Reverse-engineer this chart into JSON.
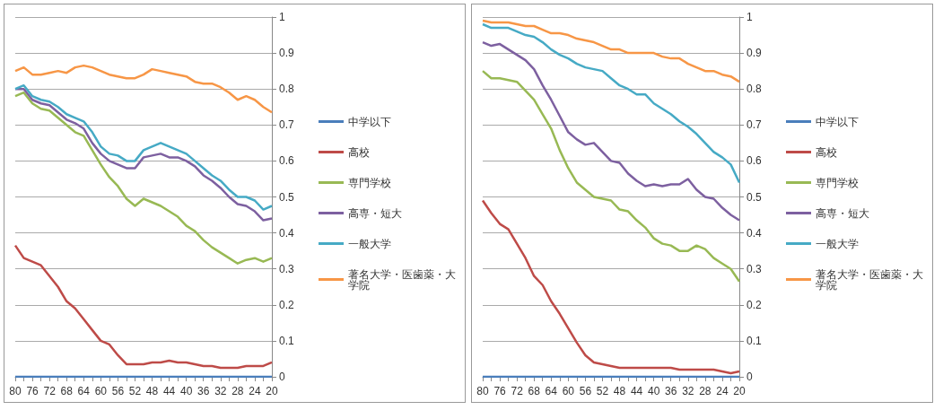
{
  "chart_data": [
    {
      "type": "line",
      "categories": [
        "80",
        null,
        "76",
        null,
        "72",
        null,
        "68",
        null,
        "64",
        null,
        "60",
        null,
        "56",
        null,
        "52",
        null,
        "48",
        null,
        "44",
        null,
        "40",
        null,
        "36",
        null,
        "32",
        null,
        "28",
        null,
        "24",
        null,
        "20"
      ],
      "ylim": [
        0,
        1
      ],
      "yticks": [
        0,
        0.1,
        0.2,
        0.3,
        0.4,
        0.5,
        0.6,
        0.7,
        0.8,
        0.9,
        1
      ],
      "grid": "y",
      "legend": "right",
      "marker": "none",
      "series": [
        {
          "name": "中学以下",
          "color": "#4a7ebb",
          "values": [
            0,
            0,
            0,
            0,
            0,
            0,
            0,
            0,
            0,
            0,
            0,
            0,
            0,
            0,
            0,
            0,
            0,
            0,
            0,
            0,
            0,
            0,
            0,
            0,
            0,
            0,
            0,
            0,
            0,
            0,
            0
          ]
        },
        {
          "name": "高校",
          "color": "#be4b48",
          "values": [
            0.365,
            0.33,
            0.32,
            0.31,
            0.28,
            0.25,
            0.21,
            0.19,
            0.16,
            0.13,
            0.1,
            0.09,
            0.06,
            0.035,
            0.035,
            0.035,
            0.04,
            0.04,
            0.045,
            0.04,
            0.04,
            0.035,
            0.03,
            0.03,
            0.025,
            0.025,
            0.025,
            0.03,
            0.03,
            0.03,
            0.04
          ]
        },
        {
          "name": "専門学校",
          "color": "#98b954",
          "values": [
            0.78,
            0.79,
            0.76,
            0.745,
            0.74,
            0.72,
            0.7,
            0.68,
            0.67,
            0.63,
            0.59,
            0.555,
            0.53,
            0.495,
            0.475,
            0.495,
            0.485,
            0.475,
            0.46,
            0.445,
            0.42,
            0.405,
            0.38,
            0.36,
            0.345,
            0.33,
            0.315,
            0.325,
            0.33,
            0.32,
            0.33
          ]
        },
        {
          "name": "高専・短大",
          "color": "#7d60a0",
          "values": [
            0.8,
            0.8,
            0.77,
            0.76,
            0.755,
            0.735,
            0.715,
            0.705,
            0.69,
            0.65,
            0.62,
            0.6,
            0.59,
            0.58,
            0.58,
            0.61,
            0.615,
            0.62,
            0.61,
            0.61,
            0.6,
            0.585,
            0.56,
            0.545,
            0.525,
            0.5,
            0.48,
            0.475,
            0.46,
            0.435,
            0.44
          ]
        },
        {
          "name": "一般大学",
          "color": "#46aac5",
          "values": [
            0.8,
            0.81,
            0.78,
            0.77,
            0.765,
            0.75,
            0.73,
            0.72,
            0.71,
            0.68,
            0.64,
            0.62,
            0.615,
            0.6,
            0.6,
            0.63,
            0.64,
            0.65,
            0.64,
            0.63,
            0.62,
            0.6,
            0.58,
            0.56,
            0.545,
            0.52,
            0.5,
            0.5,
            0.49,
            0.465,
            0.475
          ]
        },
        {
          "name": "著名大学・医歯薬・大学院",
          "color": "#f79646",
          "values": [
            0.85,
            0.86,
            0.84,
            0.84,
            0.845,
            0.85,
            0.845,
            0.86,
            0.865,
            0.86,
            0.85,
            0.84,
            0.835,
            0.83,
            0.83,
            0.84,
            0.855,
            0.85,
            0.845,
            0.84,
            0.835,
            0.82,
            0.815,
            0.815,
            0.805,
            0.79,
            0.77,
            0.78,
            0.77,
            0.75,
            0.735
          ]
        }
      ]
    },
    {
      "type": "line",
      "categories": [
        "80",
        null,
        "76",
        null,
        "72",
        null,
        "68",
        null,
        "64",
        null,
        "60",
        null,
        "56",
        null,
        "52",
        null,
        "48",
        null,
        "44",
        null,
        "40",
        null,
        "36",
        null,
        "32",
        null,
        "28",
        null,
        "24",
        null,
        "20"
      ],
      "ylim": [
        0,
        1
      ],
      "yticks": [
        0,
        0.1,
        0.2,
        0.3,
        0.4,
        0.5,
        0.6,
        0.7,
        0.8,
        0.9,
        1
      ],
      "grid": "y",
      "legend": "right",
      "marker": "none",
      "series": [
        {
          "name": "中学以下",
          "color": "#4a7ebb",
          "values": [
            0,
            0,
            0,
            0,
            0,
            0,
            0,
            0,
            0,
            0,
            0,
            0,
            0,
            0,
            0,
            0,
            0,
            0,
            0,
            0,
            0,
            0,
            0,
            0,
            0,
            0,
            0,
            0,
            0,
            0,
            0
          ]
        },
        {
          "name": "高校",
          "color": "#be4b48",
          "values": [
            0.49,
            0.455,
            0.425,
            0.41,
            0.37,
            0.33,
            0.28,
            0.255,
            0.21,
            0.175,
            0.135,
            0.095,
            0.06,
            0.04,
            0.035,
            0.03,
            0.025,
            0.025,
            0.025,
            0.025,
            0.025,
            0.025,
            0.025,
            0.02,
            0.02,
            0.02,
            0.02,
            0.02,
            0.015,
            0.01,
            0.015
          ]
        },
        {
          "name": "専門学校",
          "color": "#98b954",
          "values": [
            0.85,
            0.83,
            0.83,
            0.825,
            0.82,
            0.795,
            0.77,
            0.73,
            0.69,
            0.63,
            0.58,
            0.54,
            0.52,
            0.5,
            0.495,
            0.49,
            0.465,
            0.46,
            0.435,
            0.415,
            0.385,
            0.37,
            0.365,
            0.35,
            0.35,
            0.365,
            0.355,
            0.33,
            0.315,
            0.3,
            0.265
          ]
        },
        {
          "name": "高専・短大",
          "color": "#7d60a0",
          "values": [
            0.93,
            0.92,
            0.925,
            0.91,
            0.895,
            0.88,
            0.855,
            0.81,
            0.77,
            0.725,
            0.68,
            0.66,
            0.645,
            0.65,
            0.625,
            0.6,
            0.595,
            0.565,
            0.545,
            0.53,
            0.535,
            0.53,
            0.535,
            0.535,
            0.55,
            0.52,
            0.5,
            0.495,
            0.47,
            0.45,
            0.435
          ]
        },
        {
          "name": "一般大学",
          "color": "#46aac5",
          "values": [
            0.98,
            0.97,
            0.97,
            0.97,
            0.96,
            0.95,
            0.945,
            0.93,
            0.91,
            0.895,
            0.885,
            0.87,
            0.86,
            0.855,
            0.85,
            0.83,
            0.81,
            0.8,
            0.785,
            0.785,
            0.76,
            0.745,
            0.73,
            0.71,
            0.695,
            0.675,
            0.65,
            0.625,
            0.61,
            0.59,
            0.54
          ]
        },
        {
          "name": "著名大学・医歯薬・大学院",
          "color": "#f79646",
          "values": [
            0.99,
            0.985,
            0.985,
            0.985,
            0.98,
            0.975,
            0.975,
            0.965,
            0.955,
            0.955,
            0.95,
            0.94,
            0.935,
            0.93,
            0.92,
            0.91,
            0.91,
            0.9,
            0.9,
            0.9,
            0.9,
            0.89,
            0.885,
            0.885,
            0.87,
            0.86,
            0.85,
            0.85,
            0.84,
            0.835,
            0.82
          ]
        }
      ]
    }
  ]
}
